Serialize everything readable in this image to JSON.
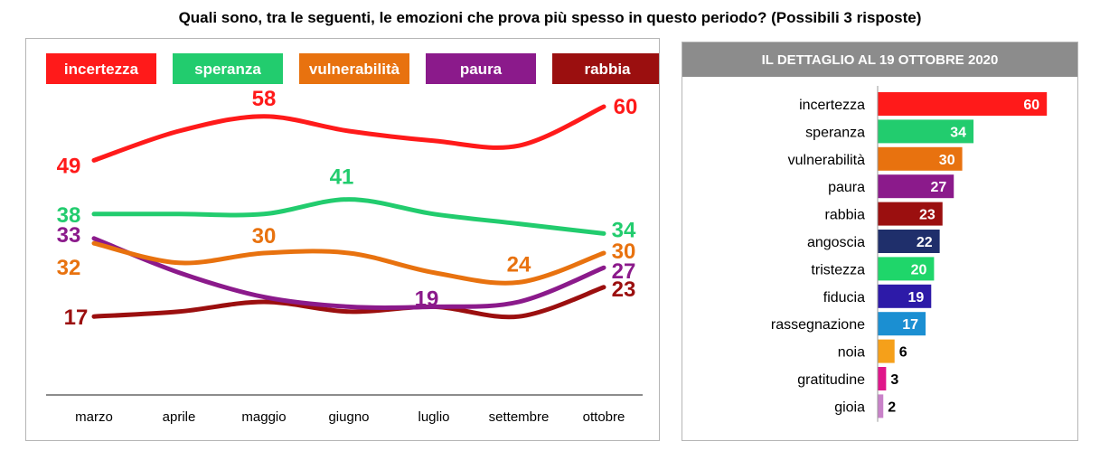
{
  "title": "Quali sono, tra le seguenti, le emozioni che prova più spesso in questo periodo? (Possibili 3 risposte)",
  "chart_data": [
    {
      "type": "line",
      "categories": [
        "marzo",
        "aprile",
        "maggio",
        "giugno",
        "luglio",
        "settembre",
        "ottobre"
      ],
      "series": [
        {
          "name": "incertezza",
          "color": "#ff1a1a",
          "values": [
            49,
            55,
            58,
            55,
            53,
            52,
            60
          ]
        },
        {
          "name": "speranza",
          "color": "#22cc6e",
          "values": [
            38,
            38,
            38,
            41,
            38,
            36,
            34
          ]
        },
        {
          "name": "vulnerabilità",
          "color": "#e8720f",
          "values": [
            32,
            28,
            30,
            30,
            26,
            24,
            30
          ]
        },
        {
          "name": "paura",
          "color": "#8b1a8b",
          "values": [
            33,
            26,
            21,
            19,
            19,
            20,
            27
          ]
        },
        {
          "name": "rabbia",
          "color": "#9b0f0f",
          "values": [
            17,
            18,
            20,
            18,
            19,
            17,
            23
          ]
        }
      ],
      "data_labels": [
        {
          "series": "incertezza",
          "category": "marzo",
          "text": "49"
        },
        {
          "series": "incertezza",
          "category": "maggio",
          "text": "58"
        },
        {
          "series": "incertezza",
          "category": "ottobre",
          "text": "60"
        },
        {
          "series": "speranza",
          "category": "marzo",
          "text": "38"
        },
        {
          "series": "speranza",
          "category": "giugno",
          "text": "41"
        },
        {
          "series": "speranza",
          "category": "ottobre",
          "text": "34"
        },
        {
          "series": "vulnerabilità",
          "category": "marzo",
          "text": "32"
        },
        {
          "series": "vulnerabilità",
          "category": "maggio",
          "text": "30"
        },
        {
          "series": "vulnerabilità",
          "category": "settembre",
          "text": "24"
        },
        {
          "series": "vulnerabilità",
          "category": "ottobre",
          "text": "30"
        },
        {
          "series": "paura",
          "category": "marzo",
          "text": "33"
        },
        {
          "series": "paura",
          "category": "luglio",
          "text": "19"
        },
        {
          "series": "paura",
          "category": "ottobre",
          "text": "27"
        },
        {
          "series": "rabbia",
          "category": "marzo",
          "text": "17"
        },
        {
          "series": "rabbia",
          "category": "ottobre",
          "text": "23"
        }
      ],
      "legend_position": "top"
    },
    {
      "type": "bar",
      "orientation": "horizontal",
      "title": "IL DETTAGLIO AL 19 OTTOBRE 2020",
      "categories": [
        "incertezza",
        "speranza",
        "vulnerabilità",
        "paura",
        "rabbia",
        "angoscia",
        "tristezza",
        "fiducia",
        "rassegnazione",
        "noia",
        "gratitudine",
        "gioia"
      ],
      "values": [
        60,
        34,
        30,
        27,
        23,
        22,
        20,
        19,
        17,
        6,
        3,
        2
      ],
      "colors": [
        "#ff1a1a",
        "#22cc6e",
        "#e8720f",
        "#8b1a8b",
        "#9b0f0f",
        "#1f2f6b",
        "#1fd66a",
        "#2d1aa8",
        "#1b8fd2",
        "#f5a01a",
        "#e0168a",
        "#c982c9"
      ]
    }
  ]
}
